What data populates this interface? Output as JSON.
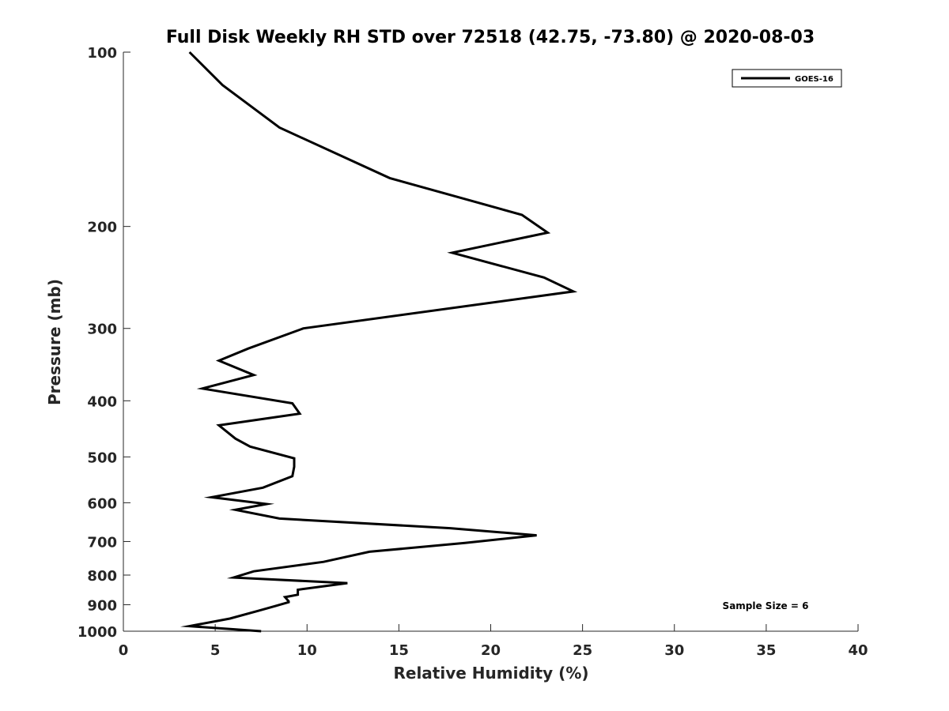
{
  "chart_data": {
    "type": "line",
    "title": "Full Disk Weekly RH STD over 72518 (42.75, -73.80) @ 2020-08-03",
    "xlabel": "Relative Humidity (%)",
    "ylabel": "Pressure (mb)",
    "xlim": [
      0,
      40
    ],
    "ylim": [
      100,
      1000
    ],
    "yscale": "log",
    "y_reversed": true,
    "xticks": [
      "0",
      "5",
      "10",
      "15",
      "20",
      "25",
      "30",
      "35",
      "40"
    ],
    "yticks": [
      "100",
      "200",
      "300",
      "400",
      "500",
      "600",
      "700",
      "800",
      "900",
      "1000"
    ],
    "legend": {
      "location": "top-right",
      "entries": [
        "GOES-16"
      ]
    },
    "annotation": "Sample Size = 6",
    "series": [
      {
        "name": "GOES-16",
        "color": "#000000",
        "x": [
          3.6,
          5.4,
          8.5,
          14.5,
          21.7,
          23.1,
          17.9,
          22.9,
          24.5,
          9.8,
          6.8,
          5.2,
          7.1,
          4.3,
          9.2,
          9.6,
          5.2,
          6.1,
          6.9,
          9.3,
          9.3,
          9.2,
          7.6,
          4.8,
          7.8,
          6.1,
          8.5,
          17.8,
          22.5,
          18.6,
          13.4,
          10.9,
          7.1,
          6.0,
          12.2,
          9.5,
          9.5,
          9.0,
          8.8,
          9.0,
          9.0,
          8.3,
          7.4,
          5.8,
          3.6,
          7.5
        ],
        "y": [
          100,
          114,
          135,
          165,
          191,
          205,
          222,
          245,
          259,
          300,
          325,
          341,
          361,
          381,
          404,
          421,
          441,
          465,
          480,
          503,
          520,
          540,
          565,
          587,
          603,
          617,
          639,
          664,
          683,
          704,
          729,
          759,
          788,
          808,
          826,
          848,
          865,
          871,
          873,
          888,
          891,
          904,
          921,
          951,
          980,
          1000
        ]
      }
    ]
  }
}
